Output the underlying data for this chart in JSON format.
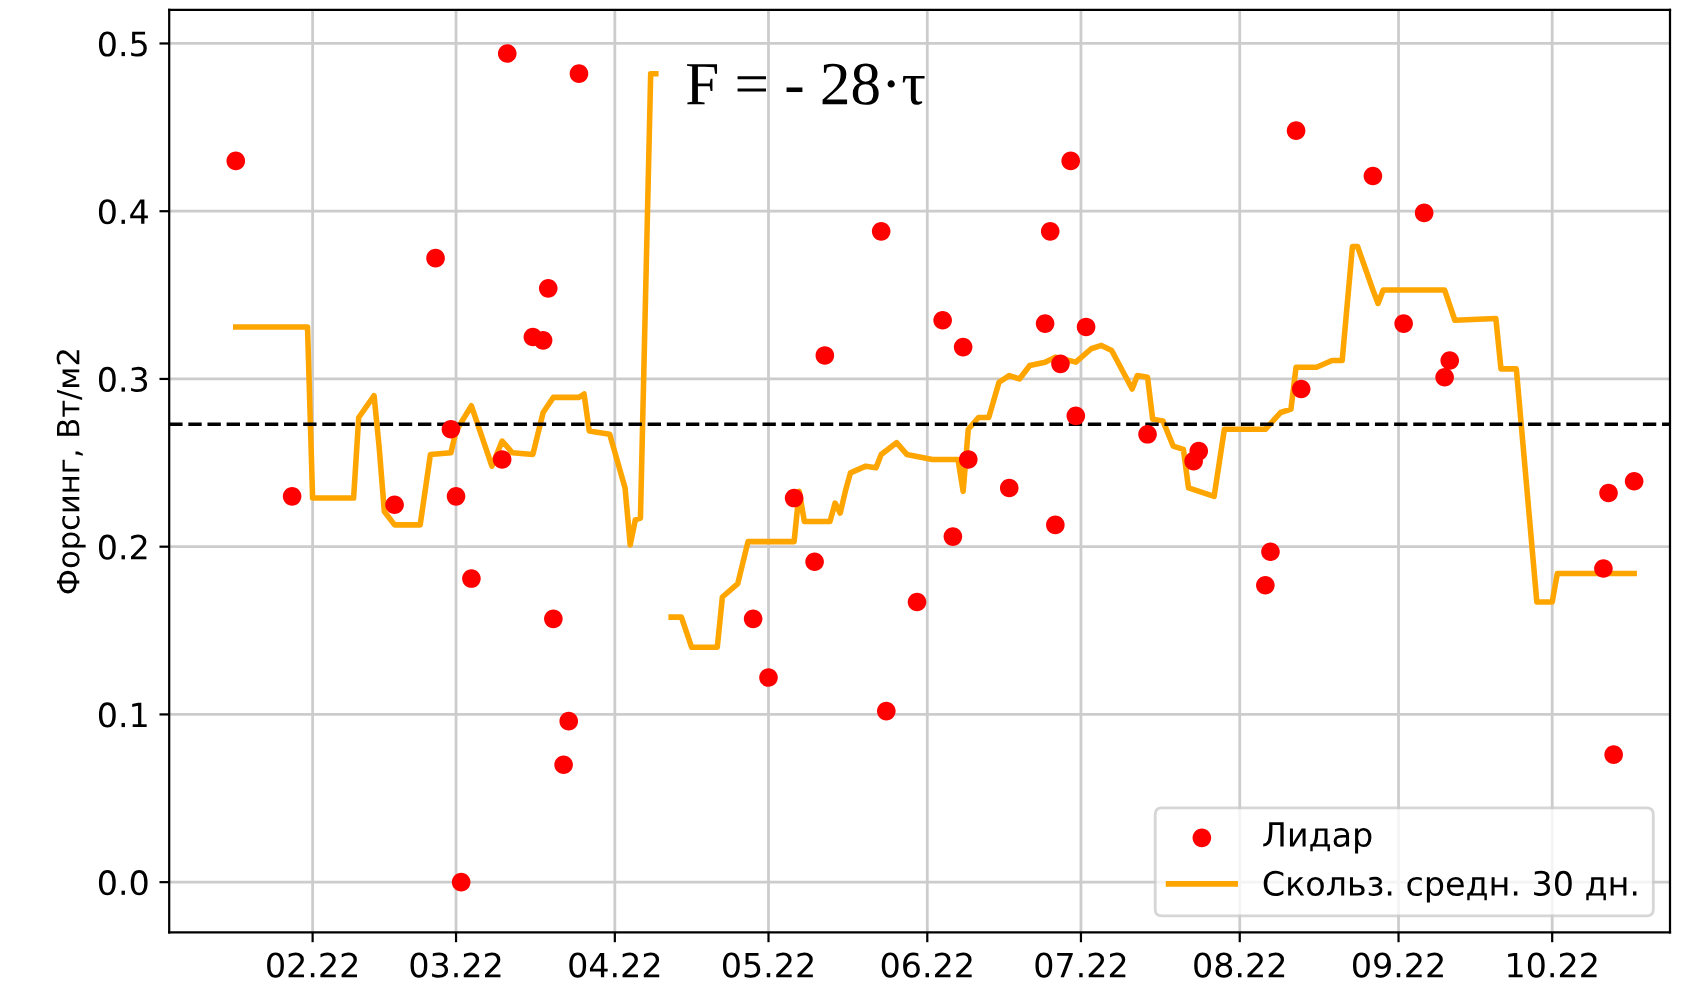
{
  "chart_data": {
    "type": "scatter",
    "ylabel": "Форсинг, Вт/м2",
    "annotations": [
      "F = - 28·τ"
    ],
    "xlim": [
      "2022-01-04",
      "2022-10-24"
    ],
    "xticks": [
      {
        "value": "2022-02-01",
        "label": "02.22"
      },
      {
        "value": "2022-03-01",
        "label": "03.22"
      },
      {
        "value": "2022-04-01",
        "label": "04.22"
      },
      {
        "value": "2022-05-01",
        "label": "05.22"
      },
      {
        "value": "2022-06-01",
        "label": "06.22"
      },
      {
        "value": "2022-07-01",
        "label": "07.22"
      },
      {
        "value": "2022-08-01",
        "label": "08.22"
      },
      {
        "value": "2022-09-01",
        "label": "09.22"
      },
      {
        "value": "2022-10-01",
        "label": "10.22"
      }
    ],
    "ylim": [
      -0.03,
      0.52
    ],
    "yticks": [
      {
        "value": 0,
        "label": "0.0"
      },
      {
        "value": 0.1,
        "label": "0.1"
      },
      {
        "value": 0.2,
        "label": "0.2"
      },
      {
        "value": 0.3,
        "label": "0.3"
      },
      {
        "value": 0.4,
        "label": "0.4"
      },
      {
        "value": 0.5,
        "label": "0.5"
      }
    ],
    "grid": true,
    "legend": "bottom right",
    "ref_lines": [
      {
        "axis": "y",
        "value": 0.273,
        "color": "#000000",
        "line_style": "dashed"
      }
    ],
    "series": [
      {
        "name": "Лидар",
        "color": "#ff0000",
        "marker": "circle",
        "x": [
          "2022-01-17",
          "2022-01-28",
          "2022-02-17",
          "2022-02-25",
          "2022-02-28",
          "2022-03-01",
          "2022-03-02",
          "2022-03-04",
          "2022-03-10",
          "2022-03-11",
          "2022-03-16",
          "2022-03-18",
          "2022-03-19",
          "2022-03-20",
          "2022-03-22",
          "2022-03-23",
          "2022-03-25",
          "2022-04-28",
          "2022-05-01",
          "2022-05-06",
          "2022-05-10",
          "2022-05-12",
          "2022-05-23",
          "2022-05-24",
          "2022-05-30",
          "2022-06-04",
          "2022-06-06",
          "2022-06-08",
          "2022-06-09",
          "2022-06-17",
          "2022-06-24",
          "2022-06-25",
          "2022-06-26",
          "2022-06-27",
          "2022-06-29",
          "2022-06-30",
          "2022-07-02",
          "2022-07-14",
          "2022-07-23",
          "2022-07-24",
          "2022-08-06",
          "2022-08-07",
          "2022-08-12",
          "2022-08-13",
          "2022-08-27",
          "2022-09-02",
          "2022-09-06",
          "2022-09-10",
          "2022-09-11",
          "2022-10-11",
          "2022-10-12",
          "2022-10-13",
          "2022-10-17"
        ],
        "values": [
          0.43,
          0.23,
          0.225,
          0.372,
          0.27,
          0.23,
          0.0,
          0.181,
          0.252,
          0.494,
          0.325,
          0.323,
          0.354,
          0.157,
          0.07,
          0.096,
          0.482,
          0.157,
          0.122,
          0.229,
          0.191,
          0.314,
          0.388,
          0.102,
          0.167,
          0.335,
          0.206,
          0.319,
          0.252,
          0.235,
          0.333,
          0.388,
          0.213,
          0.309,
          0.43,
          0.278,
          0.331,
          0.267,
          0.251,
          0.257,
          0.177,
          0.197,
          0.448,
          0.294,
          0.421,
          0.333,
          0.399,
          0.301,
          0.311,
          0.187,
          0.232,
          0.076,
          0.239
        ]
      },
      {
        "name": "Скольз. средн. 30 дн.",
        "type": "line",
        "color": "#ffa500",
        "marker": "none",
        "line_style": "solid",
        "x": [
          "2022-01-17",
          "2022-01-31",
          "2022-02-01",
          "2022-02-09",
          "2022-02-10",
          "2022-02-13",
          "2022-02-14",
          "2022-02-15",
          "2022-02-17",
          "2022-02-22",
          "2022-02-24",
          "2022-02-28",
          "2022-03-01",
          "2022-03-04",
          "2022-03-06",
          "2022-03-08",
          "2022-03-10",
          "2022-03-12",
          "2022-03-16",
          "2022-03-18",
          "2022-03-20",
          "2022-03-25",
          "2022-03-26",
          "2022-03-27",
          "2022-03-31",
          "2022-04-03",
          "2022-04-04",
          "2022-04-05",
          "2022-04-06",
          "2022-04-08",
          "2022-04-09",
          "2022-04-10",
          "2022-04-12",
          "2022-04-14",
          "2022-04-16",
          "2022-04-21",
          "2022-04-22",
          "2022-04-25",
          "2022-04-27",
          "2022-05-06",
          "2022-05-07",
          "2022-05-08",
          "2022-05-13",
          "2022-05-14",
          "2022-05-15",
          "2022-05-16",
          "2022-05-17",
          "2022-05-20",
          "2022-05-22",
          "2022-05-23",
          "2022-05-26",
          "2022-05-28",
          "2022-06-02",
          "2022-06-07",
          "2022-06-08",
          "2022-06-09",
          "2022-06-11",
          "2022-06-13",
          "2022-06-15",
          "2022-06-17",
          "2022-06-19",
          "2022-06-21",
          "2022-06-24",
          "2022-06-26",
          "2022-06-30",
          "2022-07-03",
          "2022-07-05",
          "2022-07-07",
          "2022-07-11",
          "2022-07-12",
          "2022-07-14",
          "2022-07-15",
          "2022-07-17",
          "2022-07-19",
          "2022-07-21",
          "2022-07-22",
          "2022-07-27",
          "2022-07-29",
          "2022-08-06",
          "2022-08-09",
          "2022-08-11",
          "2022-08-12",
          "2022-08-16",
          "2022-08-19",
          "2022-08-21",
          "2022-08-23",
          "2022-08-24",
          "2022-08-27",
          "2022-08-28",
          "2022-08-29",
          "2022-09-10",
          "2022-09-12",
          "2022-09-20",
          "2022-09-21",
          "2022-09-24",
          "2022-09-28",
          "2022-10-01",
          "2022-10-02",
          "2022-10-17"
        ],
        "values": [
          0.331,
          0.331,
          0.229,
          0.229,
          0.277,
          0.29,
          0.259,
          0.221,
          0.213,
          0.213,
          0.255,
          0.256,
          0.269,
          0.284,
          0.266,
          0.248,
          0.263,
          0.256,
          0.255,
          0.28,
          0.289,
          0.289,
          0.291,
          0.269,
          0.267,
          0.235,
          0.201,
          0.216,
          0.217,
          0.482,
          0.482,
          null,
          0.158,
          0.158,
          0.14,
          0.14,
          0.17,
          0.178,
          0.203,
          0.203,
          0.233,
          0.215,
          0.215,
          0.226,
          0.22,
          0.233,
          0.244,
          0.248,
          0.247,
          0.255,
          0.262,
          0.255,
          0.252,
          0.252,
          0.233,
          0.27,
          0.277,
          0.277,
          0.298,
          0.302,
          0.3,
          0.308,
          0.31,
          0.313,
          0.31,
          0.318,
          0.32,
          0.317,
          0.294,
          0.302,
          0.301,
          0.276,
          0.275,
          0.26,
          0.258,
          0.235,
          0.23,
          0.27,
          0.27,
          0.28,
          0.282,
          0.307,
          0.307,
          0.311,
          0.311,
          0.379,
          0.379,
          0.353,
          0.345,
          0.353,
          0.353,
          0.335,
          0.336,
          0.306,
          0.306,
          0.167,
          0.167,
          0.184,
          0.184
        ]
      }
    ]
  }
}
